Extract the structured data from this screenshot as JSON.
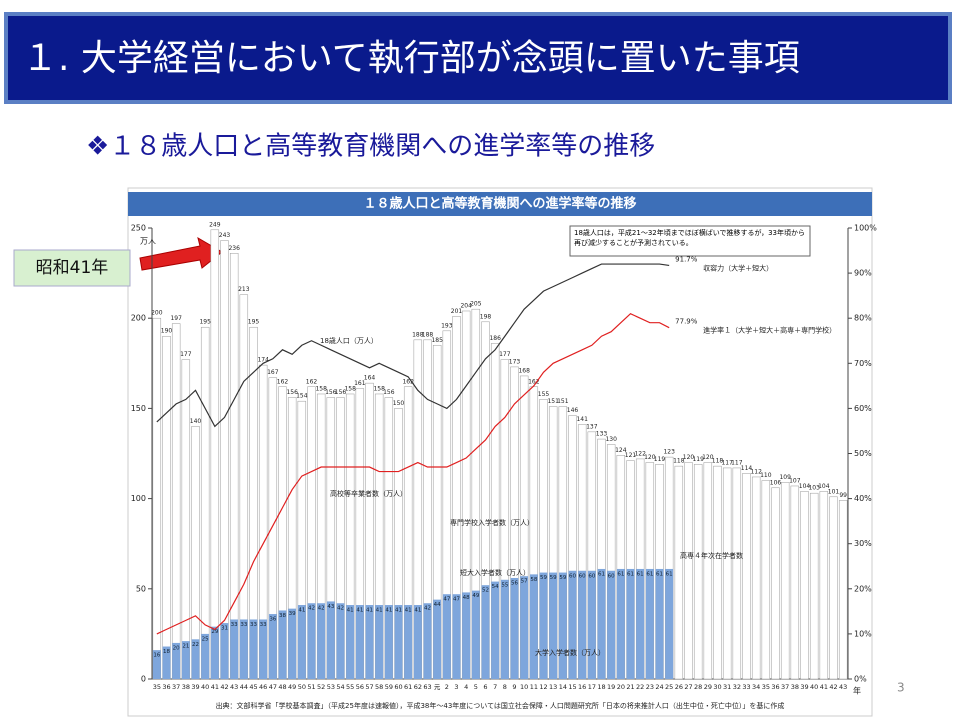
{
  "slide": {
    "title": "１. 大学経営において執行部が念頭に置いた事項",
    "subtitle": "❖１８歳人口と高等教育機関への進学率等の推移",
    "callout": "昭和41年",
    "page": "3"
  },
  "chart_data": {
    "type": "bar",
    "title": "１８歳人口と高等教育機関への進学率等の推移",
    "y_label": "万人",
    "x_label": "年",
    "source": "出典：文部科学省「学校基本調査」（平成25年度は速報値），平成38年～43年度については国立社会保障・人口問題研究所「日本の将来推計人口（出生中位・死亡中位）」を基に作成",
    "note": "18歳人口は，平成21～32年頃までほぼ横ばいで推移するが，33年頃から再び減少することが予測されている。",
    "annotations": [
      "18歳人口（万人）",
      "高校等卒業者数（万人）",
      "専門学校入学者数（万人）",
      "短大入学者数（万人）",
      "大学入学者数（万人）",
      "高専４年次在学者数"
    ],
    "categories": [
      "35",
      "36",
      "37",
      "38",
      "39",
      "40",
      "41",
      "42",
      "43",
      "44",
      "45",
      "46",
      "47",
      "48",
      "49",
      "50",
      "51",
      "52",
      "53",
      "54",
      "55",
      "56",
      "57",
      "58",
      "59",
      "60",
      "61",
      "62",
      "63",
      "元",
      "2",
      "3",
      "4",
      "5",
      "6",
      "7",
      "8",
      "9",
      "10",
      "11",
      "12",
      "13",
      "14",
      "15",
      "16",
      "17",
      "18",
      "19",
      "20",
      "21",
      "22",
      "23",
      "24",
      "25",
      "26",
      "27",
      "28",
      "29",
      "30",
      "31",
      "32",
      "33",
      "34",
      "35",
      "36",
      "37",
      "38",
      "39",
      "40",
      "41",
      "42",
      "43"
    ],
    "series": [
      {
        "name": "18歳人口",
        "color": "#ffffff",
        "values": [
          200,
          190,
          197,
          177,
          140,
          195,
          249,
          243,
          236,
          213,
          195,
          174,
          167,
          162,
          156,
          154,
          162,
          158,
          156,
          156,
          158,
          161,
          164,
          158,
          156,
          150,
          162,
          188,
          188,
          185,
          193,
          201,
          204,
          205,
          198,
          186,
          177,
          173,
          168,
          162,
          155,
          151,
          151,
          146,
          141,
          137,
          133,
          130,
          124,
          121,
          122,
          120,
          119,
          123,
          118,
          120,
          119,
          120,
          118,
          117,
          117,
          114,
          112,
          110,
          106,
          109,
          107,
          104,
          103,
          104,
          101,
          99
        ]
      },
      {
        "name": "大学入学者数",
        "color": "#7ea6dc",
        "values": [
          16,
          18,
          20,
          21,
          22,
          25,
          29,
          31,
          33,
          33,
          33,
          33,
          36,
          38,
          39,
          41,
          42,
          42,
          43,
          42,
          41,
          41,
          41,
          41,
          41,
          41,
          41,
          41,
          42,
          44,
          47,
          47,
          48,
          49,
          52,
          54,
          55,
          56,
          57,
          58,
          59,
          59,
          59,
          60,
          60,
          60,
          61,
          60,
          61,
          61,
          61,
          61,
          61,
          61,
          null,
          null,
          null,
          null,
          null,
          null,
          null,
          null,
          null,
          null,
          null,
          null,
          null,
          null,
          null,
          null,
          null,
          null
        ]
      },
      {
        "name": "収容力（大学＋短大）",
        "color": "#333333",
        "axis": "y2",
        "kind": "line",
        "values": [
          57,
          59,
          61,
          62,
          64,
          60,
          56,
          58,
          62,
          66,
          68,
          70,
          71,
          73,
          72,
          74,
          75,
          74,
          73,
          72,
          71,
          70,
          69,
          70,
          69,
          68,
          67,
          64,
          62,
          61,
          60,
          62,
          65,
          68,
          71,
          73,
          76,
          79,
          82,
          84,
          86,
          87,
          88,
          89,
          90,
          91,
          92,
          92,
          92,
          92,
          92,
          92,
          92,
          91.7,
          null,
          null,
          null,
          null,
          null,
          null,
          null,
          null,
          null,
          null,
          null,
          null,
          null,
          null,
          null,
          null,
          null,
          null
        ],
        "value_labels": [
          null,
          null,
          null,
          null,
          null,
          null,
          null,
          null,
          null,
          null,
          null,
          null,
          null,
          null,
          null,
          null,
          null,
          null,
          null,
          null,
          null,
          null,
          null,
          null,
          null,
          null,
          null,
          null,
          null,
          null,
          null,
          null,
          null,
          null,
          null,
          null,
          null,
          null,
          null,
          null,
          null,
          null,
          null,
          null,
          null,
          null,
          null,
          null,
          null,
          null,
          null,
          null,
          null,
          "91.7%",
          null,
          null,
          null,
          null,
          null,
          null,
          null,
          null,
          null,
          null,
          null,
          null,
          null,
          null,
          null,
          null,
          null,
          null
        ]
      },
      {
        "name": "進学率１（大学＋短大＋高専＋専門学校）",
        "color": "#e02020",
        "axis": "y2",
        "kind": "line",
        "values": [
          10,
          11,
          12,
          13,
          14,
          12,
          11,
          13,
          17,
          21,
          26,
          30,
          34,
          38,
          42,
          45,
          46,
          47,
          47,
          47,
          47,
          47,
          47,
          46,
          46,
          46,
          47,
          48,
          47,
          47,
          47,
          48,
          49,
          51,
          53,
          56,
          58,
          61,
          63,
          65,
          68,
          70,
          71,
          72,
          73,
          74,
          76,
          77,
          79,
          81,
          80,
          79,
          79,
          77.9,
          null,
          null,
          null,
          null,
          null,
          null,
          null,
          null,
          null,
          null,
          null,
          null,
          null,
          null,
          null,
          null,
          null,
          null
        ],
        "value_labels": [
          null,
          null,
          null,
          null,
          null,
          null,
          null,
          null,
          null,
          null,
          null,
          null,
          null,
          null,
          null,
          null,
          null,
          null,
          null,
          null,
          null,
          null,
          null,
          null,
          null,
          null,
          null,
          null,
          null,
          null,
          null,
          null,
          null,
          null,
          null,
          null,
          null,
          null,
          null,
          null,
          null,
          null,
          null,
          null,
          null,
          null,
          null,
          null,
          null,
          null,
          null,
          null,
          null,
          "77.9%",
          null,
          null,
          null,
          null,
          null,
          null,
          null,
          null,
          null,
          null,
          null,
          null,
          null,
          null,
          null,
          null,
          null,
          null
        ]
      }
    ],
    "ylim": [
      0,
      250
    ],
    "yticks": [
      0,
      50,
      100,
      150,
      200,
      250
    ],
    "y2lim": [
      0,
      100
    ],
    "y2ticks": [
      {
        "value": 0,
        "label": "0%"
      },
      {
        "value": 10,
        "label": "10%"
      },
      {
        "value": 20,
        "label": "20%"
      },
      {
        "value": 30,
        "label": "30%"
      },
      {
        "value": 40,
        "label": "40%"
      },
      {
        "value": 50,
        "label": "50%"
      },
      {
        "value": 60,
        "label": "60%"
      },
      {
        "value": 70,
        "label": "70%"
      },
      {
        "value": 80,
        "label": "80%"
      },
      {
        "value": 90,
        "label": "90%"
      },
      {
        "value": 100,
        "label": "100%"
      }
    ]
  }
}
